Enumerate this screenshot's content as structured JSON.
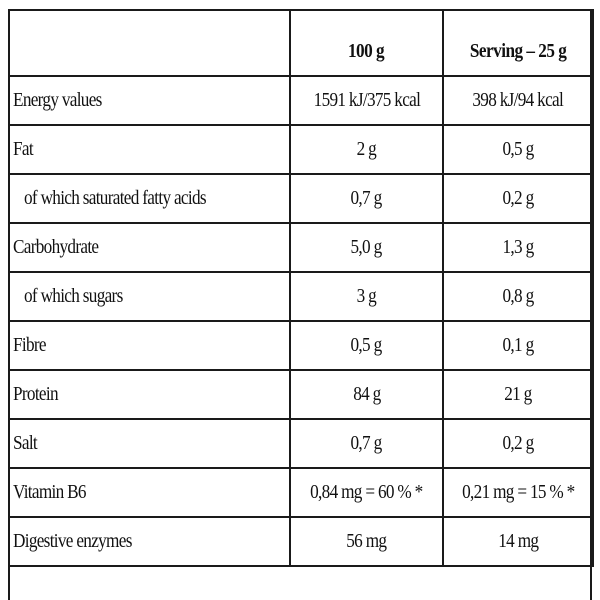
{
  "table": {
    "headers": [
      "",
      "100 g",
      "Serving – 25 g"
    ],
    "rows": [
      {
        "label": "Energy values",
        "per100g": "1591 kJ/375 kcal",
        "serving": "398 kJ/94 kcal"
      },
      {
        "label": "Fat",
        "per100g": "2 g",
        "serving": "0,5 g"
      },
      {
        "label": "of which saturated fatty acids",
        "per100g": "0,7 g",
        "serving": "0,2 g"
      },
      {
        "label": "Carbohydrate",
        "per100g": "5,0 g",
        "serving": "1,3 g"
      },
      {
        "label": "of which sugars",
        "per100g": "3 g",
        "serving": "0,8 g"
      },
      {
        "label": "Fibre",
        "per100g": "0,5 g",
        "serving": "0,1 g"
      },
      {
        "label": "Protein",
        "per100g": "84 g",
        "serving": "21 g"
      },
      {
        "label": "Salt",
        "per100g": "0,7 g",
        "serving": "0,2 g"
      },
      {
        "label": "Vitamin B6",
        "per100g": "0,84 mg = 60 % *",
        "serving": "0,21 mg = 15 % *"
      },
      {
        "label": "Digestive enzymes",
        "per100g": "56 mg",
        "serving": "14 mg"
      }
    ]
  }
}
